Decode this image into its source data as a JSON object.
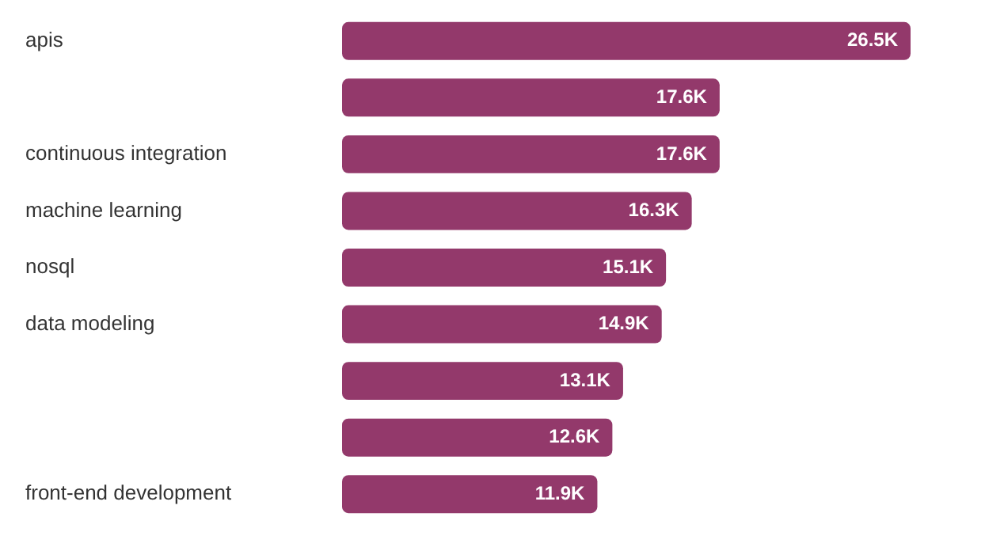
{
  "chart_data": {
    "type": "bar",
    "orientation": "horizontal",
    "categories": [
      "apis",
      null,
      "continuous integration",
      "machine learning",
      "nosql",
      "data modeling",
      null,
      null,
      "front-end development"
    ],
    "values": [
      26500,
      17600,
      17600,
      16300,
      15100,
      14900,
      13100,
      12600,
      11900
    ],
    "value_labels": [
      "26.5K",
      "17.6K",
      "17.6K",
      "16.3K",
      "15.1K",
      "14.9K",
      "13.1K",
      "12.6K",
      "11.9K"
    ],
    "color": "#93396b",
    "xlim": [
      0,
      26500
    ],
    "tick_labels": "y",
    "legend": false
  }
}
